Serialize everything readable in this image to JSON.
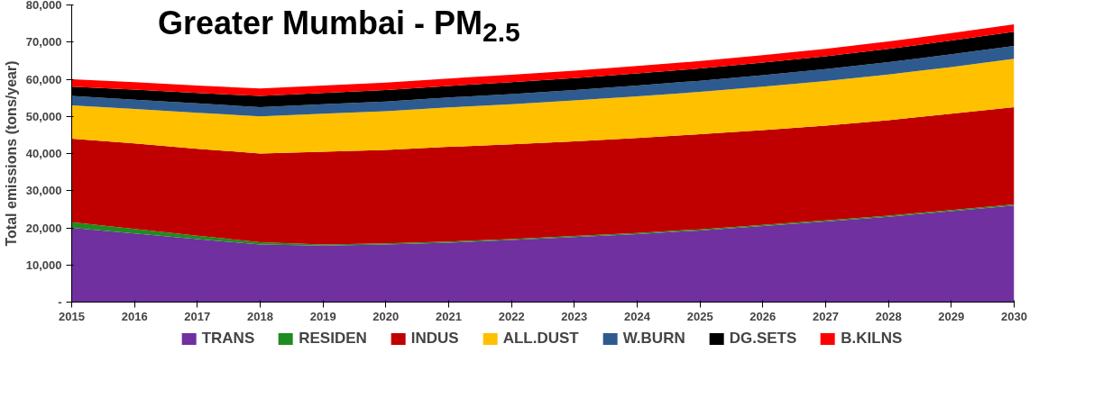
{
  "chart_data": {
    "type": "area",
    "stacked": true,
    "title": "Greater Mumbai - PM$_{2.5}$",
    "ylabel": "Total emissions (tons/year)",
    "x": [
      2015,
      2016,
      2017,
      2018,
      2019,
      2020,
      2021,
      2022,
      2023,
      2024,
      2025,
      2026,
      2027,
      2028,
      2029,
      2030
    ],
    "xlim": [
      2015,
      2030
    ],
    "xticks": [
      2015,
      2016,
      2017,
      2018,
      2019,
      2020,
      2021,
      2022,
      2023,
      2024,
      2025,
      2026,
      2027,
      2028,
      2029,
      2030
    ],
    "ylim": [
      0,
      80000
    ],
    "yticks": [
      {
        "value": 0,
        "label": "-"
      },
      {
        "value": 10000,
        "label": "10,000"
      },
      {
        "value": 20000,
        "label": "20,000"
      },
      {
        "value": 30000,
        "label": "30,000"
      },
      {
        "value": 40000,
        "label": "40,000"
      },
      {
        "value": 50000,
        "label": "50,000"
      },
      {
        "value": 60000,
        "label": "60,000"
      },
      {
        "value": 70000,
        "label": "70,000"
      },
      {
        "value": 80000,
        "label": "80,000"
      }
    ],
    "grid": false,
    "legend": "bottom",
    "series": [
      {
        "name": "TRANS",
        "color": "#7030a0",
        "values": [
          20000,
          18500,
          17000,
          15500,
          15200,
          15500,
          16000,
          16700,
          17500,
          18300,
          19300,
          20500,
          21700,
          23000,
          24500,
          26000
        ]
      },
      {
        "name": "RESIDEN",
        "color": "#1e8c1e",
        "values": [
          1500,
          1200,
          900,
          600,
          300,
          300,
          300,
          300,
          300,
          300,
          300,
          300,
          300,
          300,
          300,
          300
        ]
      },
      {
        "name": "INDUS",
        "color": "#c00000",
        "values": [
          22500,
          23000,
          23400,
          23900,
          25000,
          25200,
          25500,
          25500,
          25500,
          25600,
          25600,
          25500,
          25500,
          25700,
          25900,
          26200
        ]
      },
      {
        "name": "ALL.DUST",
        "color": "#ffc000",
        "values": [
          9000,
          9300,
          9700,
          10000,
          10200,
          10400,
          10600,
          10800,
          11000,
          11200,
          11400,
          11700,
          12000,
          12300,
          12600,
          13000
        ]
      },
      {
        "name": "W.BURN",
        "color": "#2e5b8f",
        "values": [
          2500,
          2500,
          2500,
          2500,
          2600,
          2600,
          2700,
          2700,
          2800,
          2900,
          3000,
          3100,
          3200,
          3300,
          3400,
          3500
        ]
      },
      {
        "name": "DG.SETS",
        "color": "#000000",
        "values": [
          2500,
          2700,
          2800,
          3000,
          3000,
          3100,
          3100,
          3200,
          3200,
          3300,
          3300,
          3400,
          3500,
          3600,
          3700,
          3800
        ]
      },
      {
        "name": "B.KILNS",
        "color": "#ff0000",
        "values": [
          2000,
          2000,
          2000,
          2000,
          2000,
          2000,
          2000,
          2000,
          2000,
          2000,
          2000,
          2000,
          2000,
          2000,
          2000,
          2000
        ]
      }
    ]
  }
}
